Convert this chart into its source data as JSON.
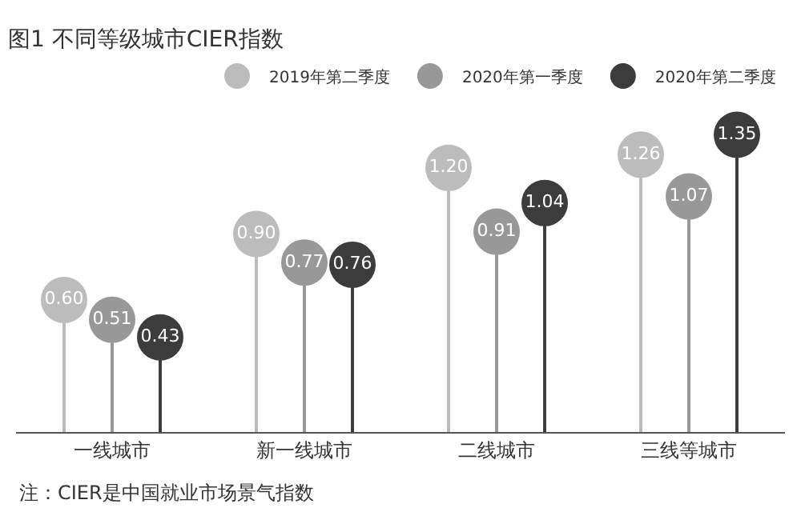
{
  "chart_data": {
    "type": "lollipop",
    "title": "图1 不同等级城市CIER指数",
    "categories": [
      "一线城市",
      "新一线城市",
      "二线城市",
      "三线等城市"
    ],
    "series": [
      {
        "name": "2019年第二季度",
        "color": "#bcbcbc",
        "values": [
          0.6,
          0.9,
          1.2,
          1.26
        ],
        "value_labels": [
          "0.60",
          "0.90",
          "1.20",
          "1.26"
        ]
      },
      {
        "name": "2020年第一季度",
        "color": "#989898",
        "values": [
          0.51,
          0.77,
          0.91,
          1.07
        ],
        "value_labels": [
          "0.51",
          "0.77",
          "0.91",
          "1.07"
        ]
      },
      {
        "name": "2020年第二季度",
        "color": "#3c3c3c",
        "values": [
          0.43,
          0.76,
          1.04,
          1.35
        ],
        "value_labels": [
          "0.43",
          "0.76",
          "1.04",
          "1.35"
        ]
      }
    ],
    "marker": "circle",
    "legend": "top right",
    "annotations": [
      "注：CIER是中国就业市场景气指数"
    ]
  }
}
